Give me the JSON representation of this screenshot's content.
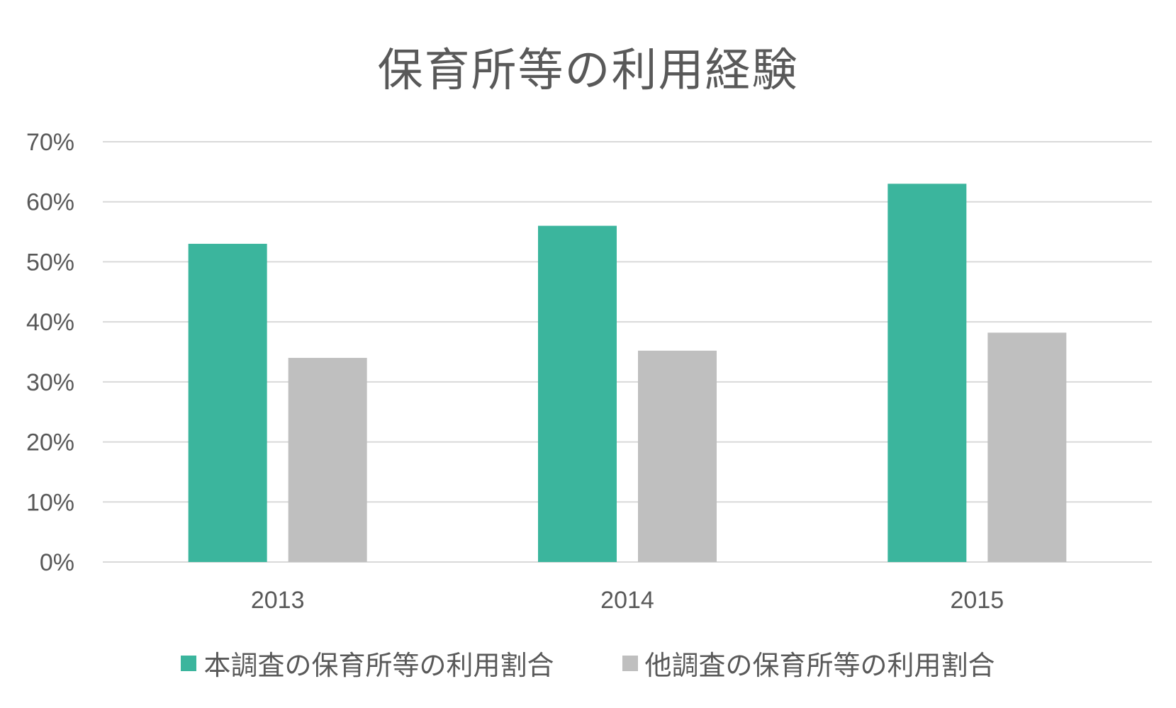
{
  "colors": {
    "series_1": "#3bb59d",
    "series_2": "#bfbfbf",
    "grid": "#d9d9d9",
    "text": "#595959"
  },
  "chart_data": {
    "type": "bar",
    "title": "保育所等の利用経験",
    "categories": [
      "2013",
      "2014",
      "2015"
    ],
    "series": [
      {
        "name": "本調査の保育所等の利用割合",
        "values": [
          0.53,
          0.56,
          0.63
        ]
      },
      {
        "name": "他調査の保育所等の利用割合",
        "values": [
          0.34,
          0.352,
          0.382
        ]
      }
    ],
    "ylim": [
      0,
      0.7
    ],
    "yticks": [
      "0%",
      "10%",
      "20%",
      "30%",
      "40%",
      "50%",
      "60%",
      "70%"
    ],
    "grid": true,
    "legend_position": "bottom"
  }
}
